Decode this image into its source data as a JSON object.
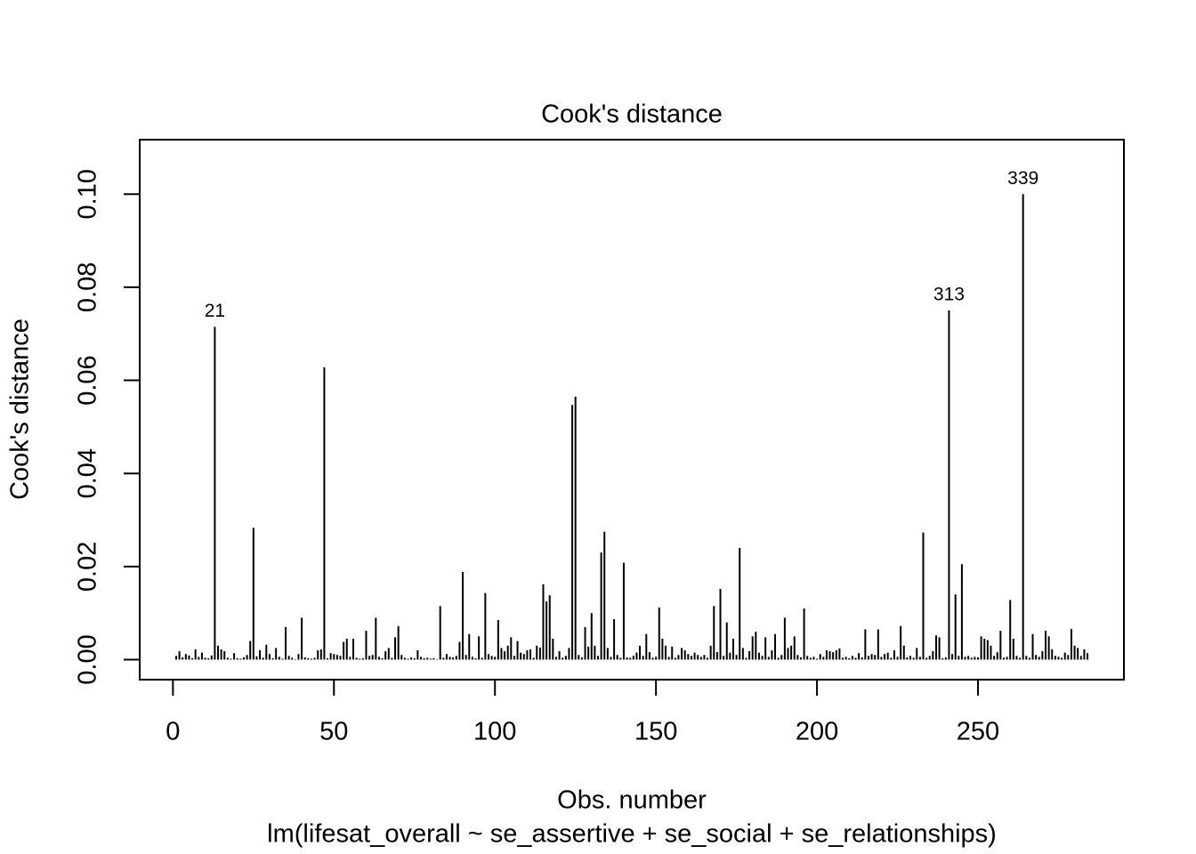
{
  "chart_data": {
    "type": "spike",
    "title": "Cook's distance",
    "xlabel": "Obs. number",
    "subtitle": "lm(lifesat_overall ~ se_assertive + se_social + se_relationships)",
    "ylabel": "Cook's distance",
    "color": "#000000",
    "xlim": [
      -10.32,
      295.32
    ],
    "ylim": [
      -0.0043,
      0.1117
    ],
    "xticks": [
      0,
      50,
      100,
      150,
      200,
      250
    ],
    "yticks": [
      {
        "value": 0,
        "label": "0.00"
      },
      {
        "value": 0.02,
        "label": "0.02"
      },
      {
        "value": 0.04,
        "label": "0.04"
      },
      {
        "value": 0.06,
        "label": "0.06"
      },
      {
        "value": 0.08,
        "label": "0.08"
      },
      {
        "value": 0.1,
        "label": "0.10"
      }
    ],
    "point_labels": [
      {
        "x": 13,
        "label": "21"
      },
      {
        "x": 241,
        "label": "313"
      },
      {
        "x": 264,
        "label": "339"
      }
    ],
    "x": [
      1,
      2,
      3,
      4,
      5,
      6,
      7,
      8,
      9,
      10,
      11,
      12,
      13,
      14,
      15,
      16,
      17,
      18,
      19,
      20,
      21,
      22,
      23,
      24,
      25,
      26,
      27,
      28,
      29,
      30,
      31,
      32,
      33,
      34,
      35,
      36,
      37,
      38,
      39,
      40,
      41,
      42,
      43,
      44,
      45,
      46,
      47,
      48,
      49,
      50,
      51,
      52,
      53,
      54,
      55,
      56,
      57,
      58,
      59,
      60,
      61,
      62,
      63,
      64,
      65,
      66,
      67,
      68,
      69,
      70,
      71,
      72,
      73,
      74,
      75,
      76,
      77,
      78,
      79,
      80,
      81,
      82,
      83,
      84,
      85,
      86,
      87,
      88,
      89,
      90,
      91,
      92,
      93,
      94,
      95,
      96,
      97,
      98,
      99,
      100,
      101,
      102,
      103,
      104,
      105,
      106,
      107,
      108,
      109,
      110,
      111,
      112,
      113,
      114,
      115,
      116,
      117,
      118,
      119,
      120,
      121,
      122,
      123,
      124,
      125,
      126,
      127,
      128,
      129,
      130,
      131,
      132,
      133,
      134,
      135,
      136,
      137,
      138,
      139,
      140,
      141,
      142,
      143,
      144,
      145,
      146,
      147,
      148,
      149,
      150,
      151,
      152,
      153,
      154,
      155,
      156,
      157,
      158,
      159,
      160,
      161,
      162,
      163,
      164,
      165,
      166,
      167,
      168,
      169,
      170,
      171,
      172,
      173,
      174,
      175,
      176,
      177,
      178,
      179,
      180,
      181,
      182,
      183,
      184,
      185,
      186,
      187,
      188,
      189,
      190,
      191,
      192,
      193,
      194,
      195,
      196,
      197,
      198,
      199,
      200,
      201,
      202,
      203,
      204,
      205,
      206,
      207,
      208,
      209,
      210,
      211,
      212,
      213,
      214,
      215,
      216,
      217,
      218,
      219,
      220,
      221,
      222,
      223,
      224,
      225,
      226,
      227,
      228,
      229,
      230,
      231,
      232,
      233,
      234,
      235,
      236,
      237,
      238,
      239,
      240,
      241,
      242,
      243,
      244,
      245,
      246,
      247,
      248,
      249,
      250,
      251,
      252,
      253,
      254,
      255,
      256,
      257,
      258,
      259,
      260,
      261,
      262,
      263,
      264,
      265,
      266,
      267,
      268,
      269,
      270,
      271,
      272,
      273,
      274,
      275,
      276,
      277,
      278,
      279,
      280,
      281,
      282,
      283,
      284
    ],
    "values": [
      0.0008,
      0.0018,
      0.0005,
      0.0012,
      0.0009,
      0.0003,
      0.0022,
      0.0006,
      0.0015,
      0.0004,
      0.0003,
      0.0009,
      0.0715,
      0.003,
      0.0022,
      0.0018,
      0.0004,
      0.0002,
      0.0014,
      0.0003,
      0.0002,
      0.0005,
      0.001,
      0.004,
      0.0283,
      0.0007,
      0.002,
      0.0004,
      0.0032,
      0.0012,
      0.0003,
      0.0025,
      0.0006,
      0.0002,
      0.007,
      0.0008,
      0.0004,
      0.0001,
      0.0012,
      0.009,
      0.0005,
      0.0003,
      0.0002,
      0.0004,
      0.002,
      0.0022,
      0.0628,
      0.0003,
      0.0014,
      0.0012,
      0.001,
      0.0008,
      0.0038,
      0.0045,
      0.0006,
      0.0045,
      0.0004,
      0.0002,
      0.0003,
      0.0062,
      0.0008,
      0.001,
      0.009,
      0.0006,
      0.0003,
      0.0018,
      0.0025,
      0.0004,
      0.0048,
      0.0072,
      0.001,
      0.0004,
      0.0002,
      0.0005,
      0.0003,
      0.002,
      0.0006,
      0.0003,
      0.0004,
      0.0002,
      0.0003,
      0.0001,
      0.0115,
      0.0004,
      0.0012,
      0.0006,
      0.0005,
      0.0008,
      0.0038,
      0.0188,
      0.001,
      0.0055,
      0.0006,
      0.0003,
      0.005,
      0.0004,
      0.0143,
      0.0012,
      0.0008,
      0.0006,
      0.0085,
      0.0025,
      0.0018,
      0.003,
      0.0048,
      0.0008,
      0.004,
      0.0015,
      0.0012,
      0.002,
      0.0022,
      0.0004,
      0.003,
      0.0026,
      0.0162,
      0.0125,
      0.0138,
      0.0045,
      0.0006,
      0.0018,
      0.0004,
      0.0008,
      0.0025,
      0.0547,
      0.0565,
      0.001,
      0.0005,
      0.007,
      0.0028,
      0.01,
      0.003,
      0.0008,
      0.023,
      0.0275,
      0.0025,
      0.0006,
      0.0087,
      0.001,
      0.0004,
      0.0208,
      0.0005,
      0.0004,
      0.0008,
      0.0015,
      0.003,
      0.0008,
      0.0055,
      0.0016,
      0.0004,
      0.0006,
      0.0112,
      0.0045,
      0.003,
      0.0006,
      0.0028,
      0.0004,
      0.001,
      0.0025,
      0.002,
      0.0012,
      0.0008,
      0.0015,
      0.001,
      0.0006,
      0.001,
      0.0004,
      0.003,
      0.0115,
      0.0016,
      0.0152,
      0.0008,
      0.008,
      0.0015,
      0.0045,
      0.001,
      0.024,
      0.0025,
      0.0004,
      0.0018,
      0.005,
      0.006,
      0.0015,
      0.0008,
      0.0048,
      0.0006,
      0.002,
      0.0055,
      0.0004,
      0.001,
      0.009,
      0.0025,
      0.003,
      0.005,
      0.001,
      0.0005,
      0.011,
      0.0008,
      0.0004,
      0.0006,
      0.0002,
      0.0012,
      0.0006,
      0.002,
      0.0018,
      0.0016,
      0.002,
      0.0024,
      0.0004,
      0.0006,
      0.0003,
      0.0008,
      0.0004,
      0.0014,
      0.0005,
      0.0065,
      0.0008,
      0.0012,
      0.001,
      0.0065,
      0.0006,
      0.0012,
      0.0015,
      0.0004,
      0.002,
      0.0006,
      0.0072,
      0.003,
      0.0005,
      0.0008,
      0.0004,
      0.0025,
      0.0006,
      0.0273,
      0.0004,
      0.0008,
      0.0018,
      0.0052,
      0.0048,
      0.0003,
      0.0005,
      0.075,
      0.0012,
      0.014,
      0.0008,
      0.0205,
      0.0006,
      0.0008,
      0.0004,
      0.0006,
      0.0005,
      0.005,
      0.0045,
      0.0042,
      0.003,
      0.0008,
      0.0016,
      0.0062,
      0.0004,
      0.0006,
      0.0128,
      0.0045,
      0.0008,
      0.0004,
      0.1,
      0.0008,
      0.0004,
      0.0055,
      0.001,
      0.0006,
      0.0018,
      0.0062,
      0.005,
      0.0022,
      0.0008,
      0.0006,
      0.0004,
      0.0015,
      0.001,
      0.0066,
      0.003,
      0.0025,
      0.0008,
      0.0022,
      0.0014
    ]
  }
}
